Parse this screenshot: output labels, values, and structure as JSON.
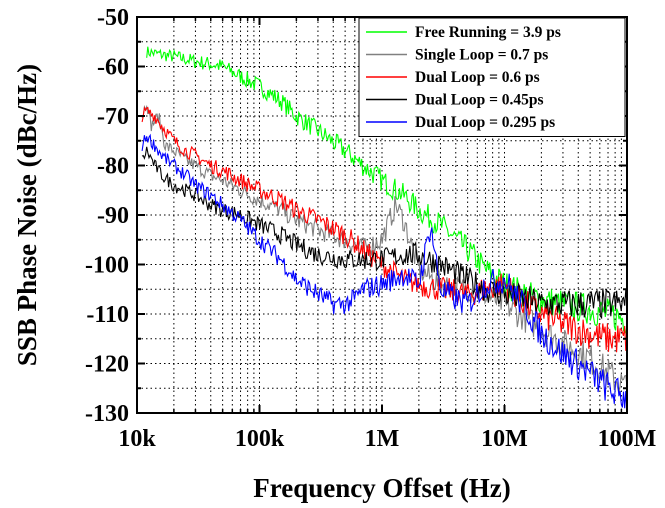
{
  "chart_data": {
    "type": "line",
    "xlabel": "Frequency Offset (Hz)",
    "ylabel": "SSB Phase Noise (dBc/Hz)",
    "x_scale": "log",
    "xlim": [
      10000,
      100000000
    ],
    "ylim": [
      -130,
      -50
    ],
    "x_ticks": [
      10000,
      100000,
      1000000,
      10000000,
      100000000
    ],
    "x_tick_labels": [
      "10k",
      "100k",
      "1M",
      "10M",
      "100M"
    ],
    "y_ticks": [
      -130,
      -120,
      -110,
      -100,
      -90,
      -80,
      -70,
      -60,
      -50
    ],
    "y_tick_labels": [
      "-130",
      "-120",
      "-110",
      "-100",
      "-90",
      "-80",
      "-70",
      "-60",
      "-50"
    ],
    "grid": true,
    "legend_position": "top-right",
    "series": [
      {
        "name": "Free Running = 3.9 ps",
        "color": "#00ff00",
        "x": [
          12000,
          15000,
          20000,
          25000,
          30000,
          40000,
          50000,
          70000,
          100000,
          150000,
          200000,
          300000,
          500000,
          700000,
          1000000,
          1500000,
          2000000,
          3000000,
          5000000,
          7000000,
          10000000,
          15000000,
          20000000,
          30000000,
          50000000,
          70000000,
          100000000
        ],
        "y": [
          -57,
          -57.5,
          -58,
          -58.5,
          -59,
          -59.5,
          -60,
          -62,
          -64,
          -67,
          -70,
          -73,
          -77,
          -80,
          -83,
          -86,
          -89,
          -92,
          -97,
          -101,
          -104,
          -106,
          -107,
          -108,
          -109,
          -110,
          -111
        ]
      },
      {
        "name": "Single Loop = 0.7 ps",
        "color": "#808080",
        "x": [
          11000,
          12000,
          13000,
          15000,
          17000,
          20000,
          25000,
          30000,
          40000,
          50000,
          70000,
          100000,
          150000,
          200000,
          300000,
          500000,
          700000,
          1000000,
          1200000,
          1300000,
          1500000,
          2000000,
          3000000,
          5000000,
          7000000,
          10000000,
          15000000,
          20000000,
          30000000,
          50000000,
          70000000,
          100000000
        ],
        "y": [
          -70,
          -67,
          -72,
          -70,
          -76,
          -77,
          -79,
          -80,
          -82,
          -83,
          -85,
          -87,
          -89,
          -91,
          -93,
          -95,
          -97,
          -95,
          -90,
          -88,
          -91,
          -101,
          -104,
          -105,
          -106,
          -108,
          -111,
          -113,
          -116,
          -119,
          -122,
          -125
        ]
      },
      {
        "name": "Dual Loop = 0.6 ps",
        "color": "#ff0000",
        "x": [
          11000,
          12000,
          14000,
          16000,
          20000,
          25000,
          30000,
          40000,
          50000,
          70000,
          100000,
          150000,
          200000,
          300000,
          500000,
          700000,
          1000000,
          1500000,
          2000000,
          3000000,
          5000000,
          7000000,
          10000000,
          15000000,
          20000000,
          30000000,
          50000000,
          70000000,
          100000000
        ],
        "y": [
          -70,
          -69,
          -70,
          -72,
          -75,
          -77,
          -78,
          -80,
          -81,
          -83,
          -85,
          -87,
          -89,
          -91,
          -94,
          -97,
          -100,
          -103,
          -104,
          -105,
          -106,
          -105,
          -104,
          -108,
          -110,
          -112,
          -114,
          -115,
          -115
        ]
      },
      {
        "name": "Dual Loop = 0.45ps",
        "color": "#000000",
        "x": [
          11000,
          12000,
          14000,
          16000,
          20000,
          25000,
          30000,
          40000,
          50000,
          70000,
          100000,
          150000,
          200000,
          300000,
          500000,
          700000,
          1000000,
          1500000,
          2000000,
          3000000,
          5000000,
          7000000,
          10000000,
          15000000,
          20000000,
          30000000,
          50000000,
          70000000,
          100000000
        ],
        "y": [
          -79,
          -77,
          -80,
          -82,
          -84,
          -85,
          -86,
          -88,
          -89,
          -90,
          -92,
          -94,
          -96,
          -98,
          -99,
          -99,
          -99,
          -98,
          -98,
          -100,
          -103,
          -105,
          -106,
          -107,
          -108,
          -108,
          -108,
          -108,
          -108
        ]
      },
      {
        "name": "Dual Loop = 0.295 ps",
        "color": "#0000ff",
        "x": [
          11000,
          12000,
          14000,
          16000,
          20000,
          25000,
          30000,
          40000,
          50000,
          70000,
          100000,
          150000,
          200000,
          300000,
          400000,
          500000,
          600000,
          700000,
          1000000,
          1500000,
          2000000,
          2500000,
          3000000,
          4000000,
          5000000,
          7000000,
          10000000,
          15000000,
          20000000,
          30000000,
          50000000,
          70000000,
          100000000
        ],
        "y": [
          -76,
          -74,
          -76,
          -78,
          -80,
          -82,
          -84,
          -86,
          -88,
          -91,
          -95,
          -99,
          -103,
          -106,
          -108,
          -108,
          -107,
          -105,
          -104,
          -102,
          -104,
          -92,
          -105,
          -107,
          -108,
          -104,
          -103,
          -109,
          -114,
          -118,
          -122,
          -125,
          -127
        ]
      }
    ]
  }
}
